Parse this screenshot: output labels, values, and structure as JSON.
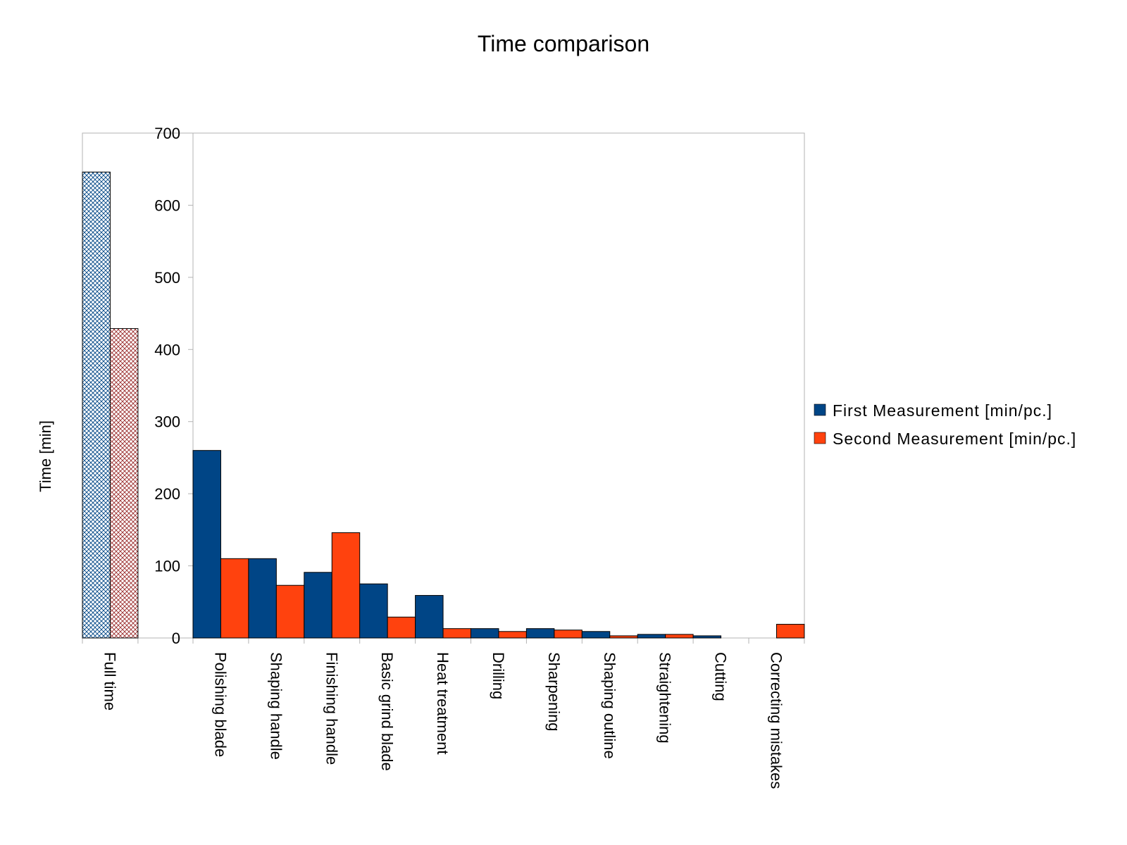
{
  "chart_data": {
    "type": "bar",
    "title": "Time comparison",
    "ylabel": "Time [min]",
    "xlabel": "",
    "ylim": [
      0,
      700
    ],
    "yticks": [
      0,
      100,
      200,
      300,
      400,
      500,
      600,
      700
    ],
    "grid": false,
    "legend_position": "right",
    "categories": [
      "Full time",
      "Polishing blade",
      "Shaping handle",
      "Finishing handle",
      "Basic grind blade",
      "Heat treatment",
      "Drilling",
      "Sharpening",
      "Shaping outline",
      "Straightening",
      "Cutting",
      "Correcting mistakes"
    ],
    "series": [
      {
        "name": "First Measurement [min/pc.]",
        "color": "#004586",
        "values": [
          646,
          260,
          110,
          91,
          75,
          59,
          13,
          13,
          9,
          5,
          3,
          0
        ]
      },
      {
        "name": "Second Measurement [min/pc.]",
        "color": "#ff420e",
        "values": [
          429,
          110,
          73,
          146,
          29,
          13,
          9,
          11,
          3,
          5,
          0,
          19
        ]
      }
    ],
    "hatched_categories": [
      "Full time"
    ]
  }
}
